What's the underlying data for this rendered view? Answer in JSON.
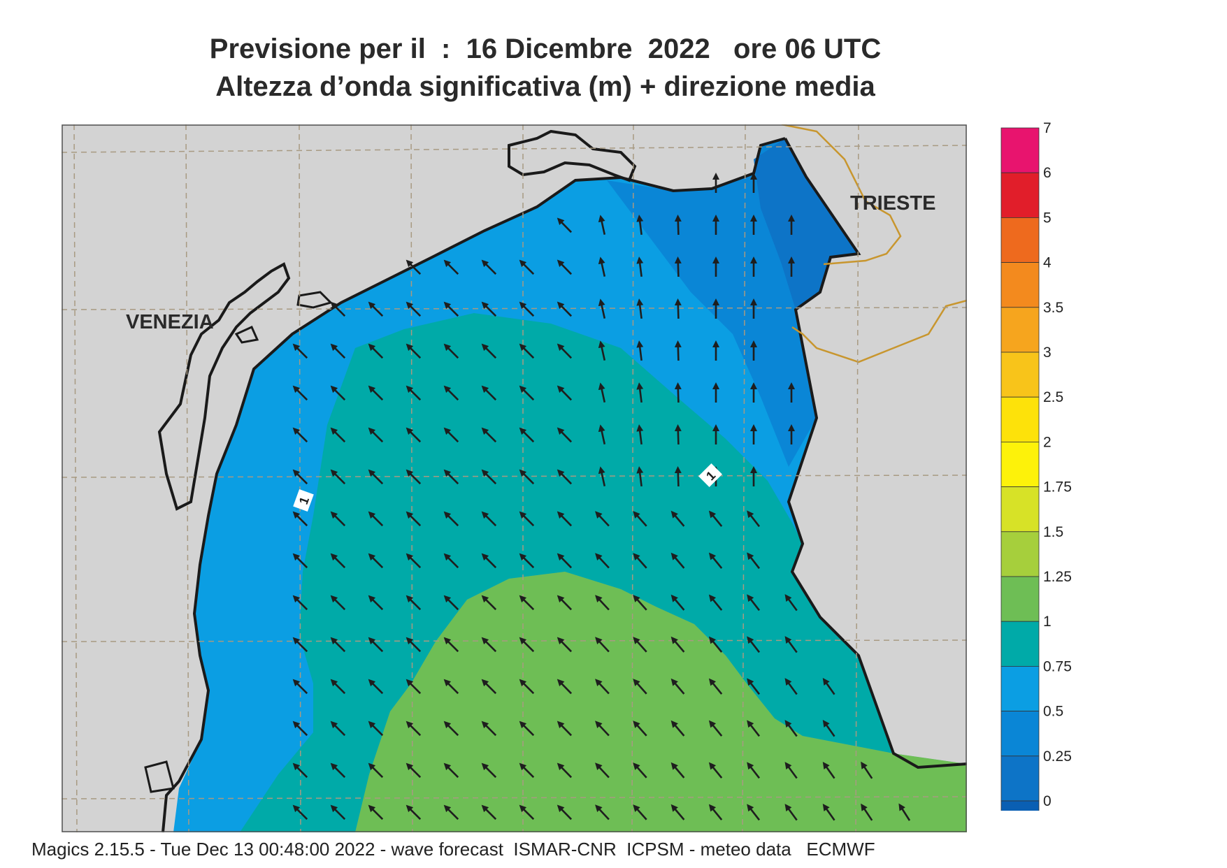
{
  "header": {
    "title_line1": "Previsione per il  :  16 Dicembre  2022   ore 06 UTC",
    "title_line2": "Altezza d’onda significativa (m) + direzione media"
  },
  "map": {
    "cities": [
      {
        "name": "VENEZIA"
      },
      {
        "name": "TRIESTE"
      }
    ],
    "contour_labels": [
      "1",
      "1"
    ],
    "colors": {
      "land": "#d3d3d3",
      "sea_025_05": "#0d74c7",
      "sea_05_075": "#0a86d6",
      "sea_075_1": "#0b9ee3",
      "sea_1_125": "#00aaa8",
      "sea_125_15": "#6ebe55",
      "coast": "#1a1a1a",
      "border": "#c8962e",
      "grid": "#a89a82",
      "arrow": "#1e1e1e"
    },
    "arrow_direction": "north-west"
  },
  "legend": {
    "labels": [
      "7",
      "6",
      "5",
      "4",
      "3.5",
      "3",
      "2.5",
      "2",
      "1.75",
      "1.5",
      "1.25",
      "1",
      "0.75",
      "0.5",
      "0.25",
      "0"
    ],
    "colors": [
      "#e8146e",
      "#e11e2a",
      "#ee6a1e",
      "#f38a1e",
      "#f6a51e",
      "#f8c41a",
      "#fde20a",
      "#fdf20a",
      "#d7e227",
      "#a6cf3c",
      "#6ebe55",
      "#00aaa8",
      "#0b9ee3",
      "#0a86d6",
      "#0d74c7",
      "#0a5fb3"
    ]
  },
  "footer": {
    "text": "Magics 2.15.5 - Tue Dec 13 00:48:00 2022 - wave forecast  ISMAR-CNR  ICPSM - meteo data   ECMWF"
  }
}
